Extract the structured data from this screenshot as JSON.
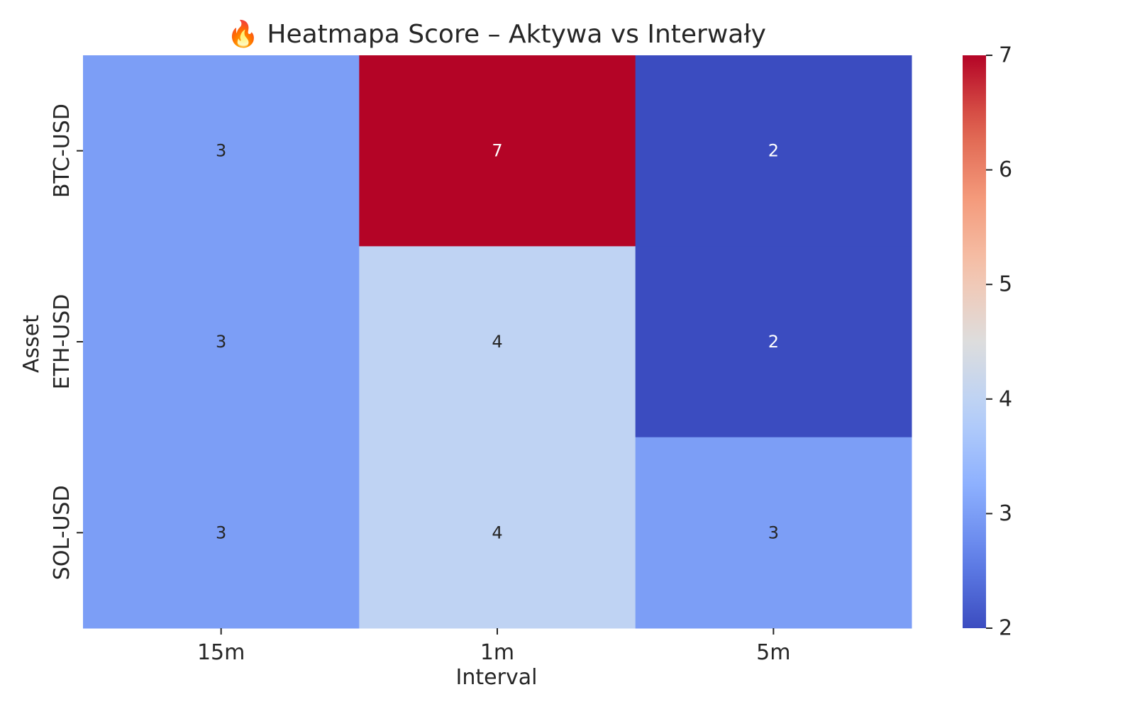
{
  "chart_data": {
    "type": "heatmap",
    "title": "🔥 Heatmapa Score – Aktywa vs Interwały",
    "xlabel": "Interval",
    "ylabel": "Asset",
    "x_categories": [
      "15m",
      "1m",
      "5m"
    ],
    "y_categories": [
      "BTC-USD",
      "ETH-USD",
      "SOL-USD"
    ],
    "values": [
      [
        3,
        7,
        2
      ],
      [
        3,
        4,
        2
      ],
      [
        3,
        4,
        3
      ]
    ],
    "colormap": "coolwarm",
    "vmin": 2,
    "vmax": 7,
    "colorbar_ticks": [
      2,
      3,
      4,
      5,
      6,
      7
    ],
    "annotated": true,
    "grid": false
  }
}
